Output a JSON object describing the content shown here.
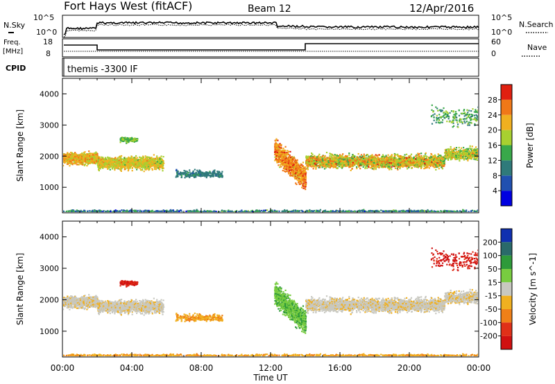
{
  "header": {
    "title": "Fort Hays West (fitACF)",
    "beam": "Beam 12",
    "date": "12/Apr/2016"
  },
  "params": {
    "nsky_label": "N.Sky",
    "nsearch_label": "N.Search",
    "freq_label_1": "Freq.",
    "freq_label_2": "[MHz]",
    "nave_label": "Nave",
    "cpid_label": "CPID",
    "cpid_text": "themis -3300 IF",
    "noise_ticks": [
      "10^5",
      "10^0"
    ],
    "noise_right_ticks": [
      "10^5",
      "10^0"
    ],
    "freq_ticks": [
      18,
      8
    ],
    "nave_ticks": [
      60,
      0
    ]
  },
  "chart_data": [
    {
      "type": "heatmap",
      "name": "power",
      "xlabel": "",
      "ylabel": "Slant Range [km]",
      "x_ticks": [
        "00:00",
        "04:00",
        "08:00",
        "12:00",
        "16:00",
        "20:00",
        "00:00"
      ],
      "xlim_hours": [
        0,
        24
      ],
      "y_ticks": [
        1000,
        2000,
        3000,
        4000
      ],
      "ylim": [
        180,
        4500
      ],
      "colorbar_label": "Power [dB]",
      "colorbar_ticks": [
        4,
        8,
        12,
        16,
        20,
        24,
        28
      ],
      "colorbar_range": [
        0,
        32
      ],
      "colors": [
        "#0000e0",
        "#2050b0",
        "#2f7a7a",
        "#39a84a",
        "#a8d030",
        "#f0b020",
        "#f07818",
        "#e02010"
      ]
    },
    {
      "type": "heatmap",
      "name": "velocity",
      "xlabel": "Time UT",
      "ylabel": "Slant Range [km]",
      "x_ticks": [
        "00:00",
        "04:00",
        "08:00",
        "12:00",
        "16:00",
        "20:00",
        "00:00"
      ],
      "xlim_hours": [
        0,
        24
      ],
      "y_ticks": [
        1000,
        2000,
        3000,
        4000
      ],
      "ylim": [
        180,
        4500
      ],
      "colorbar_label": "Velocity [m s^-1]",
      "colorbar_ticks": [
        200,
        100,
        50,
        15,
        -15,
        -50,
        -100,
        -200
      ],
      "colors": [
        "#1030b0",
        "#2a6a6a",
        "#2e9a3a",
        "#78cc40",
        "#c8c8c0",
        "#f0b020",
        "#f08018",
        "#e03018",
        "#d01010"
      ]
    }
  ]
}
